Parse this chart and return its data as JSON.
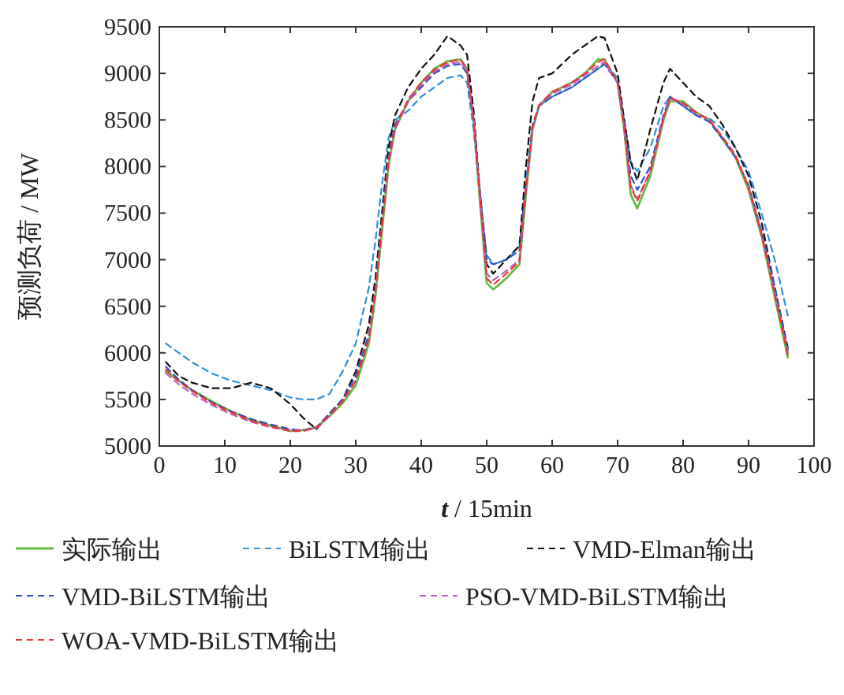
{
  "chart_data": {
    "type": "line",
    "xlabel": "*t* / 15min",
    "ylabel": "预测负荷 / MW",
    "xlim": [
      0,
      100
    ],
    "ylim": [
      5000,
      9500
    ],
    "xticks": [
      0,
      10,
      20,
      30,
      40,
      50,
      60,
      70,
      80,
      90,
      100
    ],
    "yticks": [
      5000,
      5500,
      6000,
      6500,
      7000,
      7500,
      8000,
      8500,
      9000,
      9500
    ],
    "grid": false,
    "legend": "bottom",
    "marker": "none",
    "x": [
      1,
      3,
      5,
      8,
      11,
      14,
      17,
      20,
      22,
      24,
      26,
      28,
      30,
      32,
      33,
      34,
      35,
      36,
      38,
      40,
      42,
      44,
      46,
      47,
      48,
      49,
      50,
      51,
      53,
      55,
      56,
      57,
      58,
      60,
      63,
      65,
      67,
      68,
      70,
      71,
      72,
      73,
      75,
      77,
      78,
      80,
      82,
      84,
      86,
      88,
      90,
      92,
      94,
      96
    ],
    "series": [
      {
        "name": "实际输出",
        "color": "#66bb44",
        "line_style": "solid",
        "values": [
          5800,
          5700,
          5600,
          5480,
          5370,
          5280,
          5220,
          5160,
          5170,
          5200,
          5320,
          5460,
          5650,
          6100,
          6600,
          7300,
          8000,
          8400,
          8700,
          8900,
          9050,
          9130,
          9150,
          9050,
          8500,
          7600,
          6750,
          6680,
          6800,
          6950,
          7700,
          8400,
          8650,
          8800,
          8900,
          9000,
          9150,
          9150,
          8900,
          8400,
          7700,
          7550,
          7900,
          8500,
          8700,
          8700,
          8580,
          8500,
          8300,
          8100,
          7750,
          7250,
          6600,
          5950
        ]
      },
      {
        "name": "BiLSTM输出",
        "color": "#2f8fd8",
        "line_style": "dashed",
        "values": [
          6100,
          6000,
          5900,
          5780,
          5700,
          5650,
          5600,
          5520,
          5500,
          5500,
          5560,
          5800,
          6100,
          6700,
          7200,
          7800,
          8300,
          8500,
          8600,
          8750,
          8850,
          8950,
          8980,
          8900,
          8400,
          7700,
          7050,
          6950,
          7000,
          7150,
          7800,
          8400,
          8650,
          8750,
          8850,
          8950,
          9050,
          9100,
          8950,
          8500,
          8050,
          7950,
          8200,
          8650,
          8750,
          8650,
          8550,
          8520,
          8400,
          8200,
          7950,
          7500,
          7000,
          6400
        ]
      },
      {
        "name": "VMD-Elman输出",
        "color": "#111111",
        "line_style": "dashed",
        "values": [
          5900,
          5750,
          5680,
          5620,
          5620,
          5680,
          5620,
          5450,
          5300,
          5180,
          5350,
          5500,
          5800,
          6300,
          6800,
          7500,
          8200,
          8550,
          8850,
          9050,
          9200,
          9400,
          9300,
          9200,
          8600,
          7700,
          6950,
          6850,
          7000,
          7150,
          8000,
          8700,
          8950,
          9000,
          9200,
          9300,
          9400,
          9380,
          9000,
          8500,
          8050,
          7850,
          8400,
          8900,
          9050,
          8900,
          8750,
          8650,
          8450,
          8200,
          7900,
          7400,
          6700,
          6050
        ]
      },
      {
        "name": "VMD-BiLSTM输出",
        "color": "#2a4fc0",
        "line_style": "dashed",
        "values": [
          5850,
          5710,
          5600,
          5470,
          5370,
          5290,
          5230,
          5180,
          5170,
          5200,
          5350,
          5500,
          5750,
          6200,
          6700,
          7400,
          8100,
          8450,
          8700,
          8850,
          9000,
          9080,
          9100,
          9000,
          8500,
          7700,
          7000,
          6950,
          7000,
          7100,
          7800,
          8450,
          8650,
          8750,
          8850,
          8950,
          9050,
          9100,
          8900,
          8450,
          7900,
          7750,
          8000,
          8550,
          8750,
          8650,
          8550,
          8480,
          8300,
          8100,
          7800,
          7300,
          6710,
          6030
        ]
      },
      {
        "name": "PSO-VMD-BiLSTM输出",
        "color": "#c060c0",
        "line_style": "dashed",
        "values": [
          5780,
          5660,
          5560,
          5440,
          5340,
          5260,
          5200,
          5170,
          5170,
          5190,
          5320,
          5480,
          5700,
          6150,
          6650,
          7350,
          8050,
          8400,
          8700,
          8880,
          9020,
          9100,
          9120,
          9020,
          8500,
          7650,
          6850,
          6780,
          6880,
          7000,
          7750,
          8420,
          8650,
          8780,
          8880,
          8980,
          9080,
          9120,
          8900,
          8430,
          7800,
          7650,
          7950,
          8520,
          8730,
          8670,
          8570,
          8500,
          8320,
          8120,
          7780,
          7280,
          6650,
          6000
        ]
      },
      {
        "name": "WOA-VMD-BiLSTM输出",
        "color": "#ee3333",
        "line_style": "dashed",
        "values": [
          5820,
          5690,
          5590,
          5460,
          5360,
          5270,
          5210,
          5160,
          5160,
          5200,
          5330,
          5480,
          5700,
          6150,
          6650,
          7350,
          8050,
          8420,
          8720,
          8900,
          9040,
          9120,
          9150,
          9050,
          8500,
          7650,
          6800,
          6730,
          6850,
          6980,
          7750,
          8420,
          8660,
          8800,
          8900,
          9000,
          9120,
          9150,
          8900,
          8420,
          7780,
          7630,
          7950,
          8520,
          8740,
          8680,
          8580,
          8500,
          8320,
          8120,
          7780,
          7270,
          6630,
          5980
        ]
      }
    ]
  }
}
